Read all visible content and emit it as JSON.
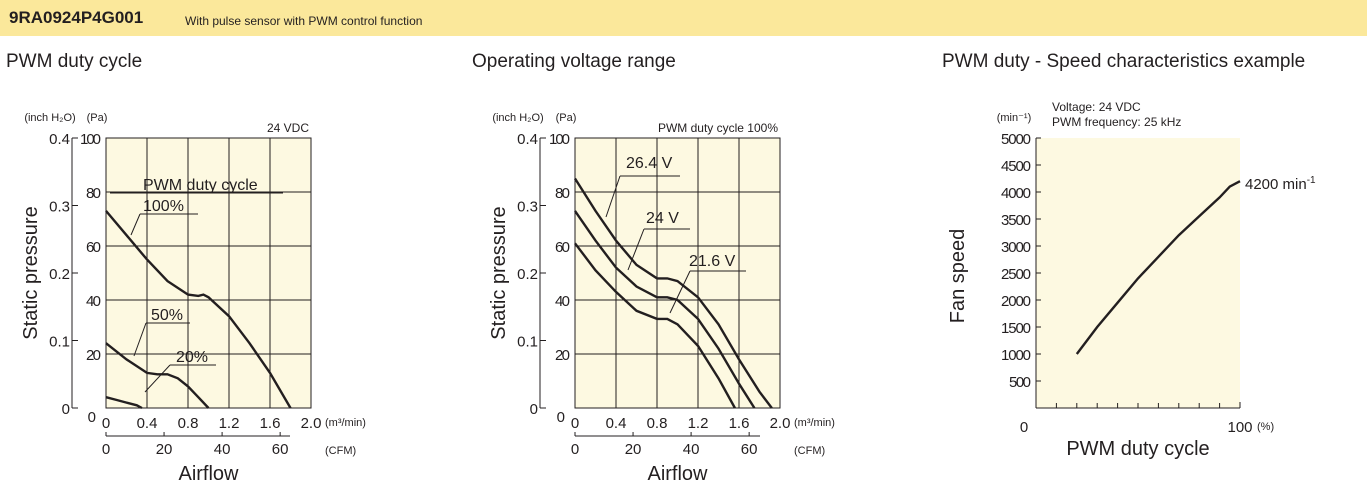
{
  "header": {
    "model": "9RA0924P4G001",
    "description": "With pulse sensor with PWM control function"
  },
  "chart_data": [
    {
      "type": "line",
      "title": "PWM duty cycle",
      "xlabel": "Airflow",
      "ylabel": "Static pressure",
      "x_unit": "(m³/min)",
      "x2_unit": "(CFM)",
      "y_unit": "(Pa)",
      "y2_unit": "(inch H₂O)",
      "xlim": [
        0,
        2.0
      ],
      "ylim": [
        0,
        100
      ],
      "x_ticks": [
        "0.4",
        "0.8",
        "1.2",
        "1.6",
        "2.0"
      ],
      "x_origin_label": "0",
      "x2_ticks": [
        "0",
        "20",
        "40",
        "60"
      ],
      "y_ticks": [
        "20",
        "40",
        "60",
        "80",
        "100"
      ],
      "y_origin_label": "0",
      "y2_ticks": [
        "0",
        "0.1",
        "0.2",
        "0.3",
        "0.4"
      ],
      "condition": "24 VDC",
      "legend_title": "PWM duty cycle",
      "series": [
        {
          "name": "100%",
          "x": [
            0,
            0.2,
            0.4,
            0.6,
            0.8,
            0.9,
            0.95,
            1.0,
            1.2,
            1.4,
            1.6,
            1.8
          ],
          "y": [
            73,
            64,
            55,
            47,
            42,
            41.5,
            42,
            41,
            34,
            24,
            13,
            0
          ]
        },
        {
          "name": "50%",
          "x": [
            0,
            0.2,
            0.4,
            0.5,
            0.6,
            0.7,
            0.8,
            0.9,
            1.0
          ],
          "y": [
            24,
            18,
            13,
            12.5,
            12.5,
            11,
            8,
            4,
            0
          ]
        },
        {
          "name": "20%",
          "x": [
            0,
            0.1,
            0.2,
            0.3,
            0.35
          ],
          "y": [
            4,
            3,
            2,
            1,
            0
          ]
        }
      ]
    },
    {
      "type": "line",
      "title": "Operating voltage range",
      "xlabel": "Airflow",
      "ylabel": "Static pressure",
      "x_unit": "(m³/min)",
      "x2_unit": "(CFM)",
      "y_unit": "(Pa)",
      "y2_unit": "(inch H₂O)",
      "xlim": [
        0,
        2.0
      ],
      "ylim": [
        0,
        100
      ],
      "x_ticks": [
        "0.4",
        "0.8",
        "1.2",
        "1.6",
        "2.0"
      ],
      "x_origin_label": "0",
      "x2_ticks": [
        "0",
        "20",
        "40",
        "60"
      ],
      "y_ticks": [
        "20",
        "40",
        "60",
        "80",
        "100"
      ],
      "y_origin_label": "0",
      "y2_ticks": [
        "0",
        "0.1",
        "0.2",
        "0.3",
        "0.4"
      ],
      "condition": "PWM duty cycle 100%",
      "series": [
        {
          "name": "26.4 V",
          "x": [
            0,
            0.2,
            0.4,
            0.6,
            0.8,
            0.9,
            1.0,
            1.2,
            1.4,
            1.6,
            1.8,
            1.92
          ],
          "y": [
            85,
            73,
            62,
            53,
            48,
            48,
            47,
            41,
            31,
            18,
            6,
            0
          ]
        },
        {
          "name": "24 V",
          "x": [
            0,
            0.2,
            0.4,
            0.6,
            0.8,
            0.9,
            1.0,
            1.2,
            1.4,
            1.6,
            1.75
          ],
          "y": [
            73,
            62,
            52,
            45,
            41,
            41,
            40,
            33,
            22,
            9,
            0
          ]
        },
        {
          "name": "21.6 V",
          "x": [
            0,
            0.2,
            0.4,
            0.6,
            0.8,
            0.9,
            1.0,
            1.2,
            1.4,
            1.56
          ],
          "y": [
            61,
            51,
            43,
            36,
            33,
            33,
            31,
            23,
            11,
            0
          ]
        }
      ]
    },
    {
      "type": "line",
      "title": "PWM duty - Speed characteristics example",
      "xlabel": "PWM duty cycle",
      "ylabel": "Fan speed",
      "x_unit": "(%)",
      "y_unit": "(min⁻¹)",
      "xlim": [
        0,
        100
      ],
      "ylim": [
        0,
        5000
      ],
      "x_ticks_labeled": [
        "0",
        "100"
      ],
      "y_ticks": [
        "500",
        "1000",
        "1500",
        "2000",
        "2500",
        "3000",
        "3500",
        "4000",
        "4500",
        "5000"
      ],
      "conditions": [
        "Voltage: 24 VDC",
        "PWM frequency: 25 kHz"
      ],
      "end_label": "4200 min",
      "end_label_sup": "-1",
      "series": [
        {
          "name": "",
          "x": [
            20,
            30,
            40,
            50,
            60,
            70,
            80,
            90,
            95,
            100
          ],
          "y": [
            1000,
            1500,
            1950,
            2400,
            2800,
            3200,
            3550,
            3900,
            4100,
            4200
          ]
        }
      ]
    }
  ]
}
